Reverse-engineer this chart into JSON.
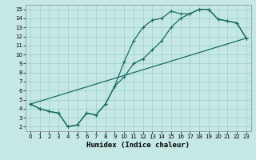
{
  "xlabel": "Humidex (Indice chaleur)",
  "bg_color": "#c5e8e5",
  "grid_color": "#9acfcc",
  "line_color": "#1a6b60",
  "xlim": [
    -0.5,
    23.5
  ],
  "ylim": [
    1.5,
    15.5
  ],
  "xticks": [
    0,
    1,
    2,
    3,
    4,
    5,
    6,
    7,
    8,
    9,
    10,
    11,
    12,
    13,
    14,
    15,
    16,
    17,
    18,
    19,
    20,
    21,
    22,
    23
  ],
  "yticks": [
    2,
    3,
    4,
    5,
    6,
    7,
    8,
    9,
    10,
    11,
    12,
    13,
    14,
    15
  ],
  "line1_x": [
    0,
    1,
    2,
    3,
    4,
    5,
    6,
    7,
    8,
    9,
    10,
    11,
    12,
    13,
    14,
    15,
    16,
    17,
    18,
    19,
    20,
    21,
    22,
    23
  ],
  "line1_y": [
    4.5,
    4.0,
    3.7,
    3.5,
    2.0,
    2.2,
    3.5,
    3.3,
    4.5,
    6.5,
    9.2,
    11.5,
    13.0,
    13.8,
    14.0,
    14.8,
    14.5,
    14.5,
    15.0,
    15.0,
    13.9,
    13.7,
    13.5,
    11.8
  ],
  "line2_x": [
    0,
    1,
    2,
    3,
    4,
    5,
    6,
    7,
    8,
    9,
    10,
    11,
    12,
    13,
    14,
    15,
    16,
    17,
    18,
    19,
    20,
    21,
    22,
    23
  ],
  "line2_y": [
    4.5,
    4.0,
    3.7,
    3.5,
    2.0,
    2.2,
    3.5,
    3.3,
    4.5,
    6.5,
    7.5,
    9.0,
    9.5,
    10.5,
    11.5,
    13.0,
    14.0,
    14.5,
    15.0,
    15.0,
    13.9,
    13.7,
    13.5,
    11.8
  ],
  "line3_x": [
    0,
    23
  ],
  "line3_y": [
    4.5,
    11.8
  ],
  "xlabel_fontsize": 6.5
}
